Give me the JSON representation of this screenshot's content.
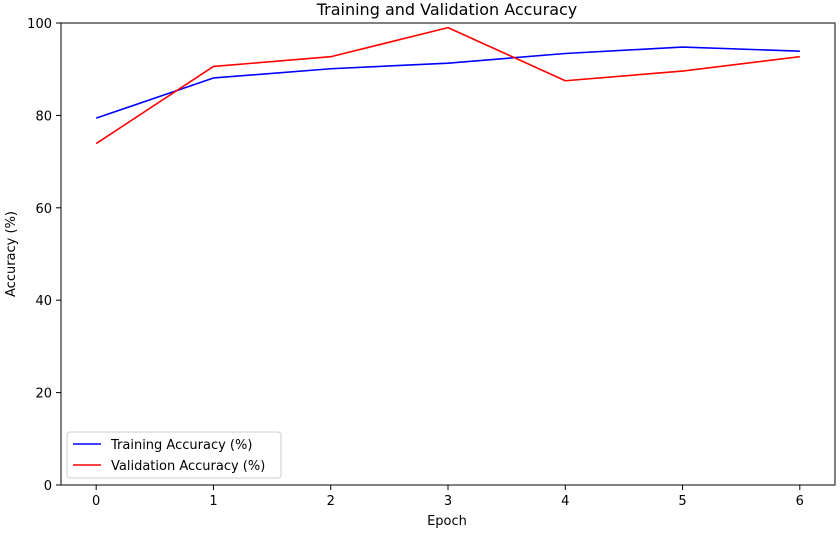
{
  "chart_data": {
    "type": "line",
    "title": "Training and Validation Accuracy",
    "xlabel": "Epoch",
    "ylabel": "Accuracy (%)",
    "x": [
      0,
      1,
      2,
      3,
      4,
      5,
      6
    ],
    "xlim": [
      -0.3,
      6.3
    ],
    "ylim": [
      0,
      100
    ],
    "xticks": [
      0,
      1,
      2,
      3,
      4,
      5,
      6
    ],
    "yticks": [
      0,
      20,
      40,
      60,
      80,
      100
    ],
    "grid": false,
    "legend": "lower-left",
    "series": [
      {
        "name": "Training Accuracy (%)",
        "color": "#0000ff",
        "values": [
          79.4,
          88.1,
          90.1,
          91.3,
          93.4,
          94.8,
          93.9
        ]
      },
      {
        "name": "Validation Accuracy (%)",
        "color": "#ff0000",
        "values": [
          73.9,
          90.6,
          92.7,
          99.0,
          87.5,
          89.6,
          92.7
        ]
      }
    ]
  }
}
